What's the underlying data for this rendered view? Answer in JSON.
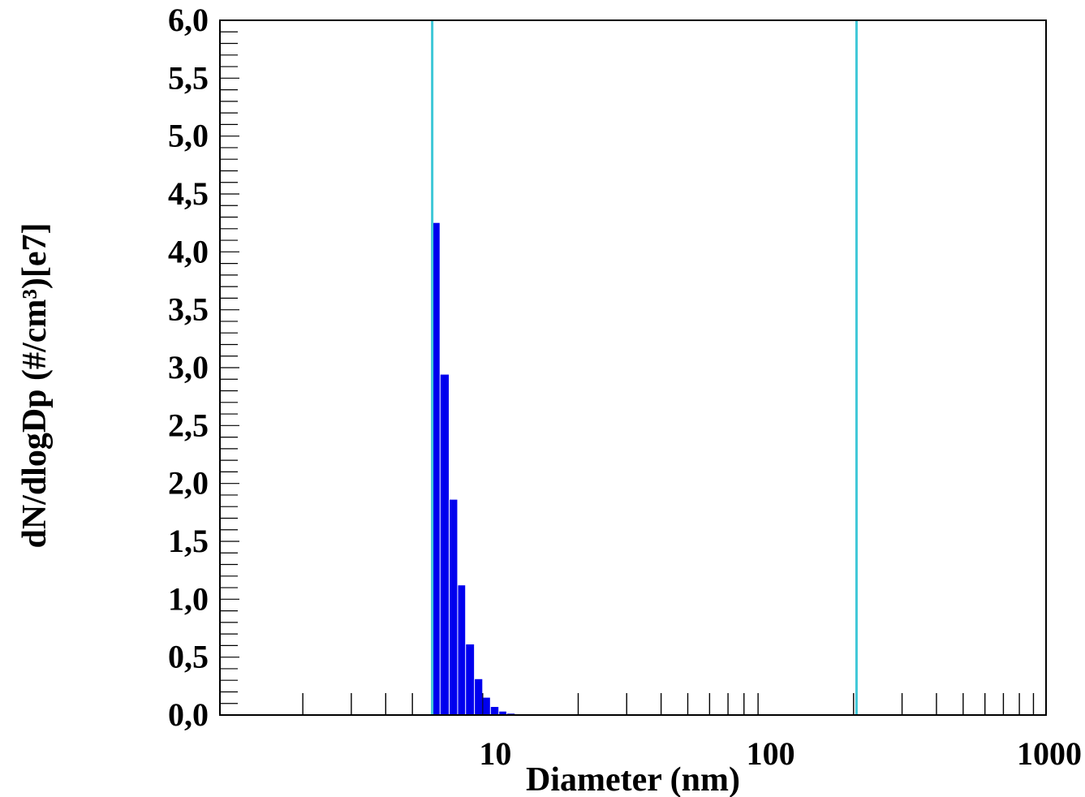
{
  "chart_data": {
    "type": "bar",
    "xlabel": "Diameter (nm)",
    "ylabel": "dN/dlogDp (#/cm³)[e7]",
    "x_scale": "log",
    "xlim": [
      1,
      1000
    ],
    "ylim": [
      0,
      6
    ],
    "x_tick_labels": [
      "10",
      "100",
      "1000"
    ],
    "y_tick_labels": [
      "0,0",
      "0,5",
      "1,0",
      "1,5",
      "2,0",
      "2,5",
      "3,0",
      "3,5",
      "4,0",
      "4,5",
      "5,0",
      "5,5",
      "6,0"
    ],
    "bars": [
      {
        "x_start": 5.9,
        "x_end": 6.3,
        "value": 4.25
      },
      {
        "x_start": 6.3,
        "x_end": 6.8,
        "value": 2.94
      },
      {
        "x_start": 6.8,
        "x_end": 7.3,
        "value": 1.86
      },
      {
        "x_start": 7.3,
        "x_end": 7.8,
        "value": 1.12
      },
      {
        "x_start": 7.8,
        "x_end": 8.4,
        "value": 0.61
      },
      {
        "x_start": 8.4,
        "x_end": 9.0,
        "value": 0.31
      },
      {
        "x_start": 9.0,
        "x_end": 9.6,
        "value": 0.15
      },
      {
        "x_start": 9.6,
        "x_end": 10.3,
        "value": 0.07
      },
      {
        "x_start": 10.3,
        "x_end": 11.0,
        "value": 0.03
      },
      {
        "x_start": 11.0,
        "x_end": 11.8,
        "value": 0.012
      },
      {
        "x_start": 11.8,
        "x_end": 12.6,
        "value": 0.005
      }
    ],
    "markers": [
      5.9,
      205
    ],
    "colors": {
      "bars": "#0000ee",
      "markers": "#40c8d8",
      "axis": "#000000"
    }
  }
}
